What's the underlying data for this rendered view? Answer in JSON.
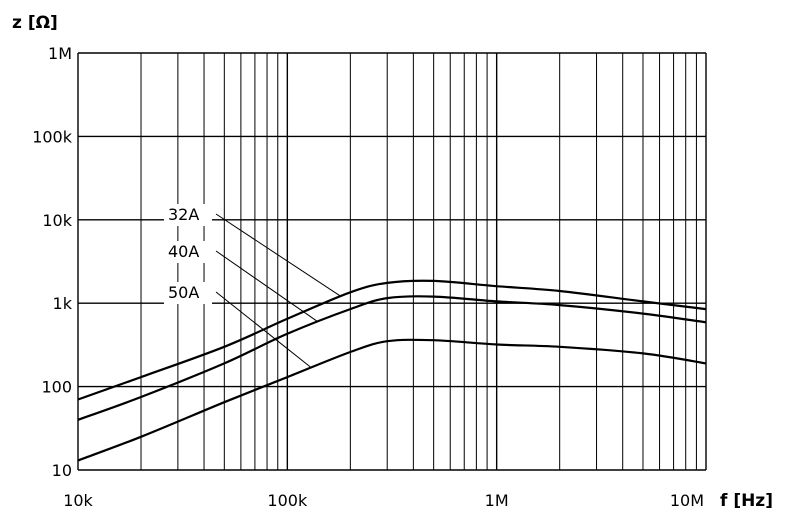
{
  "chart_data": {
    "type": "line",
    "title": "",
    "xlabel": "f [Hz]",
    "ylabel": "z [Ω]",
    "xscale": "log",
    "yscale": "log",
    "xlim": [
      10000,
      10000000
    ],
    "ylim": [
      10,
      1000000
    ],
    "grid": true,
    "xticks": [
      {
        "value": 10000,
        "label": "10k"
      },
      {
        "value": 100000,
        "label": "100k"
      },
      {
        "value": 1000000,
        "label": "1M"
      },
      {
        "value": 10000000,
        "label": "10M"
      }
    ],
    "yticks": [
      {
        "value": 10,
        "label": "10"
      },
      {
        "value": 100,
        "label": "100"
      },
      {
        "value": 1000,
        "label": "1k"
      },
      {
        "value": 10000,
        "label": "10k"
      },
      {
        "value": 100000,
        "label": "100k"
      },
      {
        "value": 1000000,
        "label": "1M"
      }
    ],
    "legend_placement": "center-left, with leader lines to curves",
    "series": [
      {
        "name": "32A",
        "x": [
          10000,
          20000,
          50000,
          100000,
          200000,
          300000,
          500000,
          1000000,
          2000000,
          5000000,
          10000000
        ],
        "y": [
          70,
          130,
          300,
          650,
          1350,
          1750,
          1850,
          1600,
          1400,
          1050,
          850
        ]
      },
      {
        "name": "40A",
        "x": [
          10000,
          20000,
          50000,
          100000,
          200000,
          300000,
          500000,
          1000000,
          2000000,
          5000000,
          10000000
        ],
        "y": [
          40,
          75,
          190,
          430,
          850,
          1150,
          1200,
          1050,
          950,
          750,
          590
        ]
      },
      {
        "name": "50A",
        "x": [
          10000,
          20000,
          50000,
          100000,
          200000,
          300000,
          500000,
          1000000,
          2000000,
          5000000,
          10000000
        ],
        "y": [
          13,
          25,
          65,
          130,
          260,
          350,
          360,
          320,
          300,
          250,
          190
        ]
      }
    ]
  }
}
